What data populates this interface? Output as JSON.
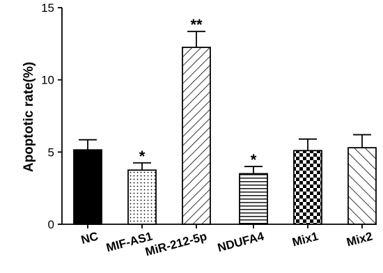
{
  "chart_data": {
    "type": "bar",
    "title": "",
    "xlabel": "",
    "ylabel": "Apoptotic rate(%)",
    "ylim": [
      0,
      15
    ],
    "yticks": [
      "0",
      "5",
      "10",
      "15"
    ],
    "categories": [
      "NC",
      "MIF-AS1",
      "MiR-212-5p",
      "NDUFA4",
      "Mix1",
      "Mix2"
    ],
    "values": [
      5.15,
      3.75,
      12.25,
      3.5,
      5.1,
      5.3
    ],
    "errors": [
      0.7,
      0.5,
      1.1,
      0.5,
      0.8,
      0.9
    ],
    "significance": [
      "",
      "*",
      "**",
      "*",
      "",
      ""
    ],
    "patterns": [
      "solid",
      "dots",
      "diagonal-forward",
      "horizontal",
      "checker",
      "diagonal-back"
    ],
    "grid": false,
    "legend": "none"
  }
}
